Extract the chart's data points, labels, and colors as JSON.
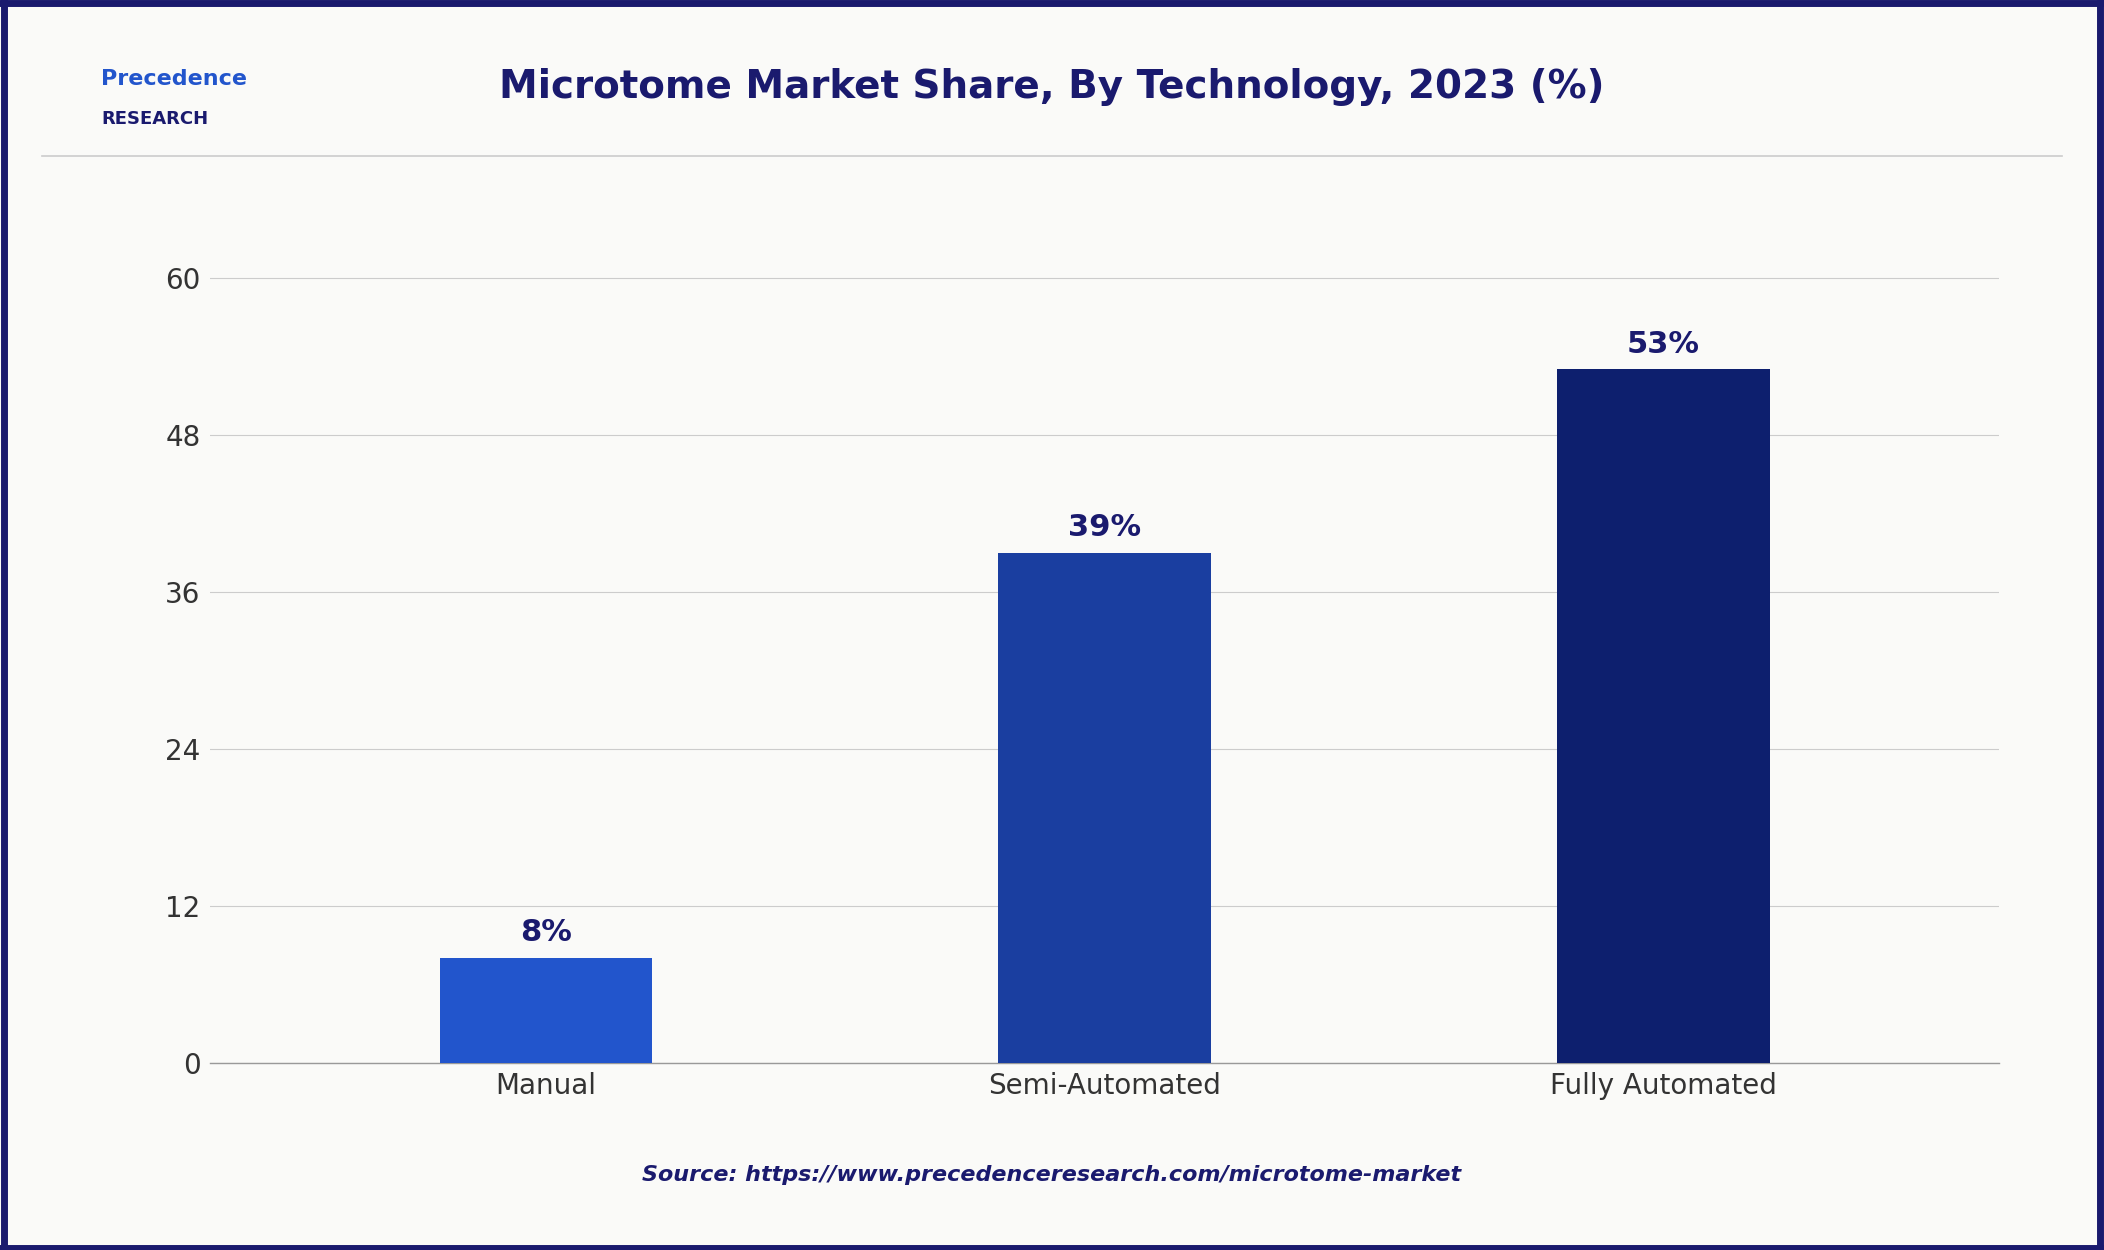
{
  "title": "Microtome Market Share, By Technology, 2023 (%)",
  "categories": [
    "Manual",
    "Semi-Automated",
    "Fully Automated"
  ],
  "values": [
    8,
    39,
    53
  ],
  "bar_colors": [
    "#2255CC",
    "#1A3EA0",
    "#0D1F6E"
  ],
  "bar_labels": [
    "8%",
    "39%",
    "53%"
  ],
  "ylim": [
    0,
    65
  ],
  "yticks": [
    0,
    12,
    24,
    36,
    48,
    60
  ],
  "source_text": "Source: https://www.precedenceresearch.com/microtome-market",
  "background_color": "#FAFAF8",
  "border_color": "#1A1A6E",
  "title_color": "#1A1A6E",
  "title_fontsize": 28,
  "tick_label_fontsize": 20,
  "bar_label_fontsize": 22,
  "source_fontsize": 16,
  "logo_text_1": "Precedence",
  "logo_text_2": "RESEARCH"
}
